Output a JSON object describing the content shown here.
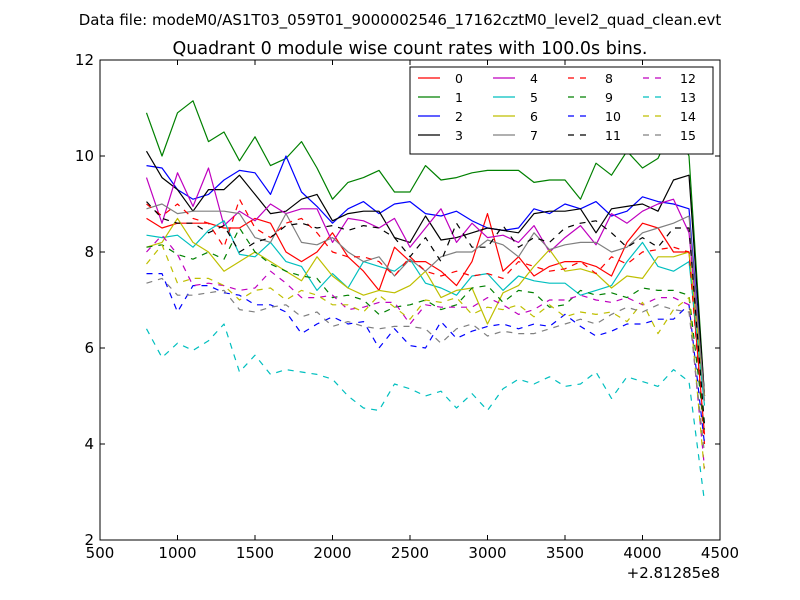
{
  "figure": {
    "suptitle": "Data file: modeM0/AS1T03_059T01_9000002546_17162cztM0_level2_quad_clean.evt",
    "x_offset_label": "+2.81285e8"
  },
  "chart_data": {
    "type": "line",
    "title": "Quadrant 0 module wise count rates with 100.0s bins.",
    "xlabel": "",
    "ylabel": "",
    "xlim": [
      500,
      4500
    ],
    "ylim": [
      2,
      12
    ],
    "xticks": [
      500,
      1000,
      1500,
      2000,
      2500,
      3000,
      3500,
      4000,
      4500
    ],
    "yticks": [
      2,
      4,
      6,
      8,
      10,
      12
    ],
    "grid": false,
    "legend_placement": "top-right",
    "legend_columns": 4,
    "x": [
      800,
      900,
      1000,
      1100,
      1200,
      1300,
      1400,
      1500,
      1600,
      1700,
      1800,
      1900,
      2000,
      2100,
      2200,
      2300,
      2400,
      2500,
      2600,
      2700,
      2800,
      2900,
      3000,
      3100,
      3200,
      3300,
      3400,
      3500,
      3600,
      3700,
      3800,
      3900,
      4000,
      4100,
      4200,
      4300,
      4400
    ],
    "series": [
      {
        "name": "0",
        "color": "#ff0000",
        "dash": "solid",
        "values": [
          8.7,
          8.5,
          8.6,
          8.6,
          8.6,
          8.5,
          8.5,
          8.7,
          8.6,
          8.0,
          7.8,
          8.0,
          8.4,
          7.9,
          7.6,
          7.2,
          8.1,
          7.8,
          7.8,
          7.6,
          7.3,
          7.8,
          8.8,
          7.6,
          7.9,
          7.5,
          7.7,
          7.8,
          7.8,
          7.7,
          7.5,
          8.2,
          8.6,
          8.5,
          8.0,
          8.0,
          4.2
        ]
      },
      {
        "name": "1",
        "color": "#008000",
        "dash": "solid",
        "values": [
          10.9,
          10.0,
          10.9,
          11.15,
          10.3,
          10.5,
          9.9,
          10.4,
          9.8,
          9.95,
          10.3,
          9.75,
          9.1,
          9.45,
          9.55,
          9.7,
          9.25,
          9.25,
          9.8,
          9.5,
          9.55,
          9.65,
          9.7,
          9.7,
          9.7,
          9.45,
          9.5,
          9.5,
          9.1,
          9.85,
          9.6,
          10.1,
          9.75,
          9.95,
          10.65,
          10.0,
          5.0
        ]
      },
      {
        "name": "2",
        "color": "#0000ff",
        "dash": "solid",
        "values": [
          9.8,
          9.75,
          9.3,
          9.1,
          9.2,
          9.5,
          9.7,
          9.65,
          9.2,
          10.0,
          9.25,
          8.95,
          8.6,
          8.9,
          9.05,
          8.8,
          9.0,
          9.05,
          8.8,
          8.75,
          8.85,
          8.65,
          8.5,
          8.45,
          8.5,
          8.9,
          8.8,
          9.0,
          8.9,
          9.05,
          8.75,
          8.85,
          9.15,
          9.05,
          9.0,
          8.9,
          5.0
        ]
      },
      {
        "name": "3",
        "color": "#000000",
        "dash": "solid",
        "values": [
          10.1,
          9.55,
          9.3,
          8.85,
          9.3,
          9.3,
          9.6,
          9.2,
          8.8,
          8.85,
          9.1,
          9.2,
          8.65,
          8.8,
          8.85,
          8.85,
          8.3,
          8.2,
          8.75,
          8.25,
          8.3,
          8.4,
          8.5,
          8.45,
          8.4,
          8.8,
          8.85,
          8.85,
          8.9,
          8.4,
          8.9,
          8.95,
          9.0,
          8.85,
          9.5,
          9.6,
          5.0
        ]
      },
      {
        "name": "4",
        "color": "#bf00bf",
        "dash": "solid",
        "values": [
          9.55,
          8.6,
          9.65,
          8.95,
          9.75,
          8.55,
          8.85,
          8.65,
          9.0,
          8.8,
          8.9,
          8.9,
          8.2,
          8.7,
          8.65,
          8.5,
          8.7,
          8.1,
          8.5,
          8.9,
          8.2,
          8.6,
          8.3,
          8.35,
          8.2,
          8.55,
          8.0,
          8.3,
          8.55,
          8.15,
          8.8,
          8.6,
          8.85,
          9.0,
          9.1,
          8.4,
          5.0
        ]
      },
      {
        "name": "5",
        "color": "#00bfbf",
        "dash": "solid",
        "values": [
          8.35,
          8.3,
          8.35,
          8.1,
          8.45,
          8.65,
          7.95,
          7.9,
          8.2,
          7.8,
          7.7,
          7.2,
          7.55,
          7.25,
          7.8,
          7.7,
          7.6,
          7.85,
          7.35,
          7.25,
          7.1,
          7.5,
          7.55,
          7.2,
          7.5,
          7.4,
          7.35,
          7.35,
          7.1,
          7.2,
          7.3,
          7.8,
          8.2,
          7.7,
          7.6,
          7.8,
          4.8
        ]
      },
      {
        "name": "6",
        "color": "#bfbf00",
        "dash": "solid",
        "values": [
          8.1,
          8.2,
          8.7,
          8.2,
          8.0,
          7.6,
          7.8,
          8.0,
          7.8,
          7.6,
          7.4,
          7.9,
          7.5,
          7.25,
          7.1,
          7.2,
          7.15,
          7.3,
          7.6,
          7.05,
          7.2,
          7.25,
          6.5,
          7.15,
          7.3,
          7.7,
          8.05,
          7.6,
          7.65,
          7.55,
          7.25,
          7.5,
          7.45,
          7.9,
          7.9,
          8.0,
          5.0
        ]
      },
      {
        "name": "7",
        "color": "#808080",
        "dash": "solid",
        "values": [
          8.9,
          9.0,
          8.8,
          8.85,
          8.85,
          8.85,
          8.8,
          8.3,
          8.2,
          8.8,
          8.2,
          8.15,
          8.3,
          8.0,
          7.8,
          7.9,
          7.5,
          7.85,
          7.6,
          7.9,
          8.0,
          8.0,
          8.25,
          8.15,
          7.9,
          8.4,
          8.05,
          8.15,
          8.2,
          8.2,
          8.0,
          8.1,
          8.4,
          8.5,
          8.6,
          8.75,
          4.9
        ]
      },
      {
        "name": "8",
        "color": "#ff0000",
        "dash": "dash",
        "values": [
          9.0,
          8.75,
          9.0,
          8.7,
          8.6,
          8.1,
          9.1,
          8.5,
          8.3,
          8.6,
          8.7,
          8.4,
          8.0,
          7.9,
          7.9,
          7.8,
          7.5,
          7.9,
          7.6,
          7.5,
          7.6,
          7.5,
          7.55,
          7.45,
          7.8,
          7.7,
          7.6,
          7.65,
          7.8,
          7.55,
          7.9,
          7.75,
          8.0,
          8.05,
          8.1,
          8.0,
          4.0
        ]
      },
      {
        "name": "9",
        "color": "#008000",
        "dash": "dash",
        "values": [
          8.1,
          8.15,
          7.95,
          7.85,
          8.0,
          7.85,
          8.5,
          8.0,
          7.75,
          7.6,
          7.5,
          7.45,
          7.05,
          7.1,
          7.0,
          6.7,
          6.85,
          6.9,
          7.0,
          6.8,
          6.9,
          7.25,
          7.3,
          6.95,
          7.2,
          7.15,
          6.85,
          6.9,
          7.2,
          7.1,
          7.15,
          7.05,
          7.25,
          7.2,
          7.2,
          7.1,
          4.3
        ]
      },
      {
        "name": "10",
        "color": "#0000ff",
        "dash": "dash",
        "values": [
          7.55,
          7.55,
          6.75,
          7.3,
          7.3,
          7.15,
          7.1,
          6.9,
          6.9,
          6.75,
          6.3,
          6.5,
          6.65,
          6.5,
          6.55,
          6.0,
          6.4,
          6.05,
          6.0,
          6.55,
          6.2,
          6.35,
          6.45,
          6.5,
          6.4,
          6.5,
          6.45,
          6.7,
          6.45,
          6.25,
          6.35,
          6.5,
          6.5,
          6.6,
          6.6,
          6.9,
          4.0
        ]
      },
      {
        "name": "11",
        "color": "#000000",
        "dash": "dash",
        "values": [
          9.05,
          8.7,
          8.6,
          8.6,
          8.4,
          8.55,
          8.0,
          8.2,
          8.3,
          8.55,
          8.6,
          8.5,
          8.55,
          8.45,
          8.55,
          8.5,
          8.3,
          7.9,
          8.3,
          7.8,
          8.6,
          8.1,
          8.1,
          8.55,
          8.1,
          8.3,
          8.2,
          8.5,
          8.6,
          8.65,
          8.4,
          8.1,
          8.3,
          8.1,
          8.5,
          8.5,
          4.4
        ]
      },
      {
        "name": "12",
        "color": "#bf00bf",
        "dash": "dash",
        "values": [
          8.0,
          8.35,
          7.95,
          7.3,
          7.35,
          7.3,
          7.2,
          7.25,
          7.6,
          7.35,
          7.05,
          7.05,
          7.1,
          6.8,
          6.85,
          6.95,
          6.95,
          6.5,
          6.9,
          6.85,
          6.85,
          6.85,
          7.05,
          6.9,
          6.7,
          6.8,
          7.0,
          7.0,
          7.1,
          7.0,
          6.95,
          7.05,
          6.9,
          7.05,
          7.05,
          6.9,
          3.5
        ]
      },
      {
        "name": "13",
        "color": "#00bfbf",
        "dash": "dash",
        "values": [
          6.4,
          5.8,
          6.1,
          5.95,
          6.15,
          6.5,
          5.5,
          5.85,
          5.45,
          5.55,
          5.5,
          5.45,
          5.35,
          5.0,
          4.75,
          4.7,
          5.25,
          5.15,
          5.0,
          5.1,
          4.75,
          5.05,
          4.7,
          5.15,
          5.35,
          5.25,
          5.4,
          5.2,
          5.25,
          5.5,
          4.95,
          5.4,
          5.3,
          5.2,
          5.55,
          5.3,
          2.8
        ]
      },
      {
        "name": "14",
        "color": "#bfbf00",
        "dash": "dash",
        "values": [
          7.75,
          8.15,
          7.35,
          7.45,
          7.45,
          7.3,
          7.0,
          7.2,
          7.25,
          7.0,
          7.2,
          7.1,
          6.9,
          6.9,
          6.75,
          7.1,
          6.85,
          6.6,
          7.0,
          6.95,
          7.05,
          6.7,
          6.85,
          6.8,
          6.9,
          6.65,
          6.9,
          6.65,
          6.75,
          6.7,
          6.75,
          6.55,
          6.95,
          6.3,
          6.8,
          7.05,
          3.4
        ]
      },
      {
        "name": "15",
        "color": "#808080",
        "dash": "dash",
        "values": [
          7.35,
          7.45,
          7.1,
          7.1,
          7.15,
          7.2,
          6.8,
          6.75,
          6.85,
          6.9,
          6.65,
          6.75,
          6.45,
          6.55,
          6.45,
          6.4,
          6.45,
          6.45,
          6.4,
          6.1,
          6.4,
          6.5,
          6.25,
          6.35,
          6.3,
          6.3,
          6.4,
          6.5,
          6.6,
          6.5,
          6.7,
          6.85,
          6.75,
          6.9,
          6.8,
          6.75,
          3.8
        ]
      }
    ]
  }
}
